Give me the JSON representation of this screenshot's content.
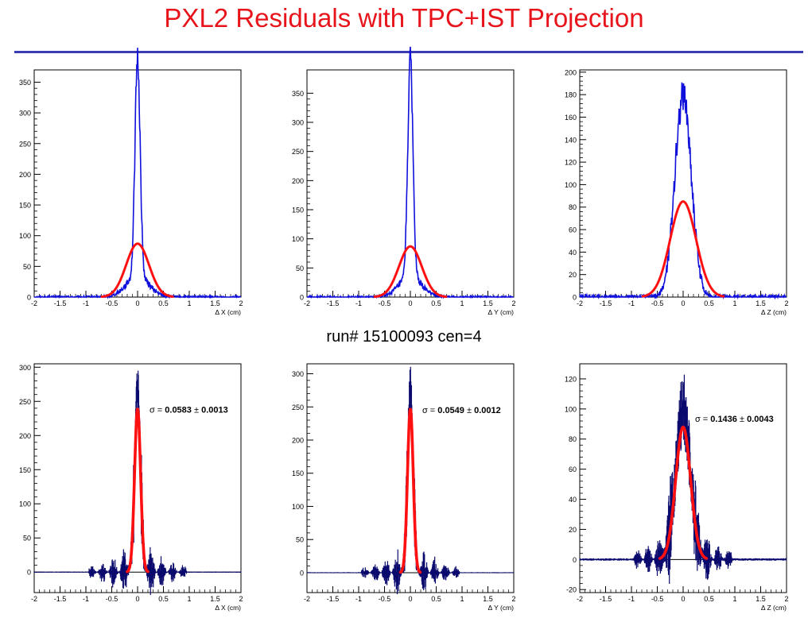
{
  "page": {
    "title": "PXL2 Residuals with TPC+IST Projection",
    "subtitle": "run# 15100093   cen=4"
  },
  "colors": {
    "title": "#e8141b",
    "rule": "#3b3bb3",
    "blue": "#1010dd",
    "navy": "#0b0b6e",
    "red": "#ff1010"
  },
  "chart_data": [
    {
      "type": "line",
      "xlabel": "Δ X (cm)",
      "xlim": [
        -2,
        2
      ],
      "ylim": [
        0,
        370
      ],
      "xticks": [
        -2,
        -1.5,
        -1,
        -0.5,
        0,
        0.5,
        1,
        1.5,
        2
      ],
      "yticks": [
        0,
        50,
        100,
        150,
        200,
        250,
        300,
        350
      ],
      "series": [
        {
          "shape": "peak",
          "peak": 355,
          "sigma": 0.05,
          "tail_amp": 85,
          "tail_sigma": 0.22,
          "color": "#1010dd"
        },
        {
          "shape": "gauss",
          "peak": 87,
          "sigma": 0.22,
          "color": "#ff1010"
        }
      ]
    },
    {
      "type": "line",
      "xlabel": "Δ Y (cm)",
      "xlim": [
        -2,
        2
      ],
      "ylim": [
        0,
        390
      ],
      "xticks": [
        -2,
        -1.5,
        -1,
        -0.5,
        0,
        0.5,
        1,
        1.5,
        2
      ],
      "yticks": [
        0,
        50,
        100,
        150,
        200,
        250,
        300,
        350
      ],
      "series": [
        {
          "shape": "peak",
          "peak": 375,
          "sigma": 0.05,
          "tail_amp": 85,
          "tail_sigma": 0.22,
          "color": "#1010dd"
        },
        {
          "shape": "gauss",
          "peak": 87,
          "sigma": 0.22,
          "color": "#ff1010"
        }
      ]
    },
    {
      "type": "line",
      "xlabel": "Δ Z (cm)",
      "xlim": [
        -2,
        2
      ],
      "ylim": [
        0,
        202
      ],
      "xticks": [
        -2,
        -1.5,
        -1,
        -0.5,
        0,
        0.5,
        1,
        1.5,
        2
      ],
      "yticks": [
        0,
        20,
        40,
        60,
        80,
        100,
        120,
        140,
        160,
        180,
        200
      ],
      "series": [
        {
          "shape": "peak",
          "peak": 180,
          "sigma": 0.16,
          "tail_amp": 0,
          "tail_sigma": 0.3,
          "color": "#1010dd"
        },
        {
          "shape": "gauss",
          "peak": 85,
          "sigma": 0.25,
          "color": "#ff1010"
        }
      ]
    },
    {
      "type": "line",
      "xlabel": "Δ X (cm)",
      "xlim": [
        -2,
        2
      ],
      "ylim": [
        -30,
        305
      ],
      "xticks": [
        -2,
        -1.5,
        -1,
        -0.5,
        0,
        0.5,
        1,
        1.5,
        2
      ],
      "yticks": [
        0,
        50,
        100,
        150,
        200,
        250,
        300
      ],
      "annotation": {
        "prefix": "σ = ",
        "value": "0.0583",
        "pm": " ± ",
        "error": "0.0013"
      },
      "series": [
        {
          "shape": "deconv",
          "peak": 265,
          "sigma": 0.058,
          "wiggle": 22,
          "color": "#0b0b6e"
        },
        {
          "shape": "gauss",
          "peak": 240,
          "sigma": 0.058,
          "color": "#ff1010"
        }
      ]
    },
    {
      "type": "line",
      "xlabel": "Δ Y (cm)",
      "xlim": [
        -2,
        2
      ],
      "ylim": [
        -30,
        315
      ],
      "xticks": [
        -2,
        -1.5,
        -1,
        -0.5,
        0,
        0.5,
        1,
        1.5,
        2
      ],
      "yticks": [
        0,
        50,
        100,
        150,
        200,
        250,
        300
      ],
      "annotation": {
        "prefix": "σ = ",
        "value": "0.0549",
        "pm": " ± ",
        "error": "0.0012"
      },
      "series": [
        {
          "shape": "deconv",
          "peak": 275,
          "sigma": 0.055,
          "wiggle": 20,
          "color": "#0b0b6e"
        },
        {
          "shape": "gauss",
          "peak": 248,
          "sigma": 0.055,
          "color": "#ff1010"
        }
      ]
    },
    {
      "type": "line",
      "xlabel": "Δ Z (cm)",
      "xlim": [
        -2,
        2
      ],
      "ylim": [
        -22,
        130
      ],
      "xticks": [
        -2,
        -1.5,
        -1,
        -0.5,
        0,
        0.5,
        1,
        1.5,
        2
      ],
      "yticks": [
        -20,
        0,
        20,
        40,
        60,
        80,
        100,
        120
      ],
      "annotation": {
        "prefix": "σ = ",
        "value": "0.1436",
        "pm": " ± ",
        "error": "0.0043"
      },
      "series": [
        {
          "shape": "deconv",
          "peak": 100,
          "sigma": 0.14,
          "wiggle": 14,
          "color": "#0b0b6e"
        },
        {
          "shape": "gauss",
          "peak": 88,
          "sigma": 0.144,
          "color": "#ff1010"
        }
      ]
    }
  ]
}
